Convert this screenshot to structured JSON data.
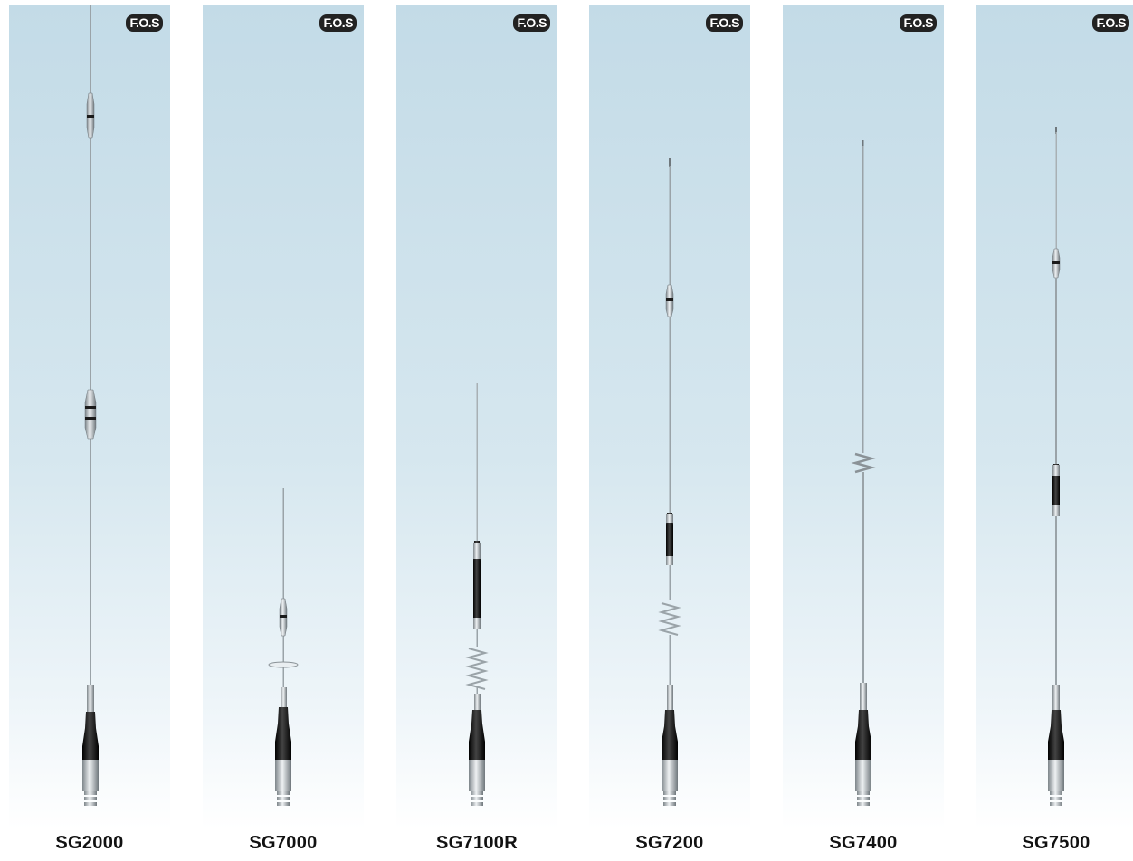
{
  "badge_text": "F.O.S",
  "colors": {
    "panel_top": "#c3dbe7",
    "panel_bottom": "#ffffff",
    "whip": "#9aa3a8",
    "chrome": "#c9ced2",
    "black_sleeve": "#1b1b1b"
  },
  "products": [
    {
      "model": "SG2000"
    },
    {
      "model": "SG7000"
    },
    {
      "model": "SG7100R"
    },
    {
      "model": "SG7200"
    },
    {
      "model": "SG7400"
    },
    {
      "model": "SG7500"
    }
  ]
}
